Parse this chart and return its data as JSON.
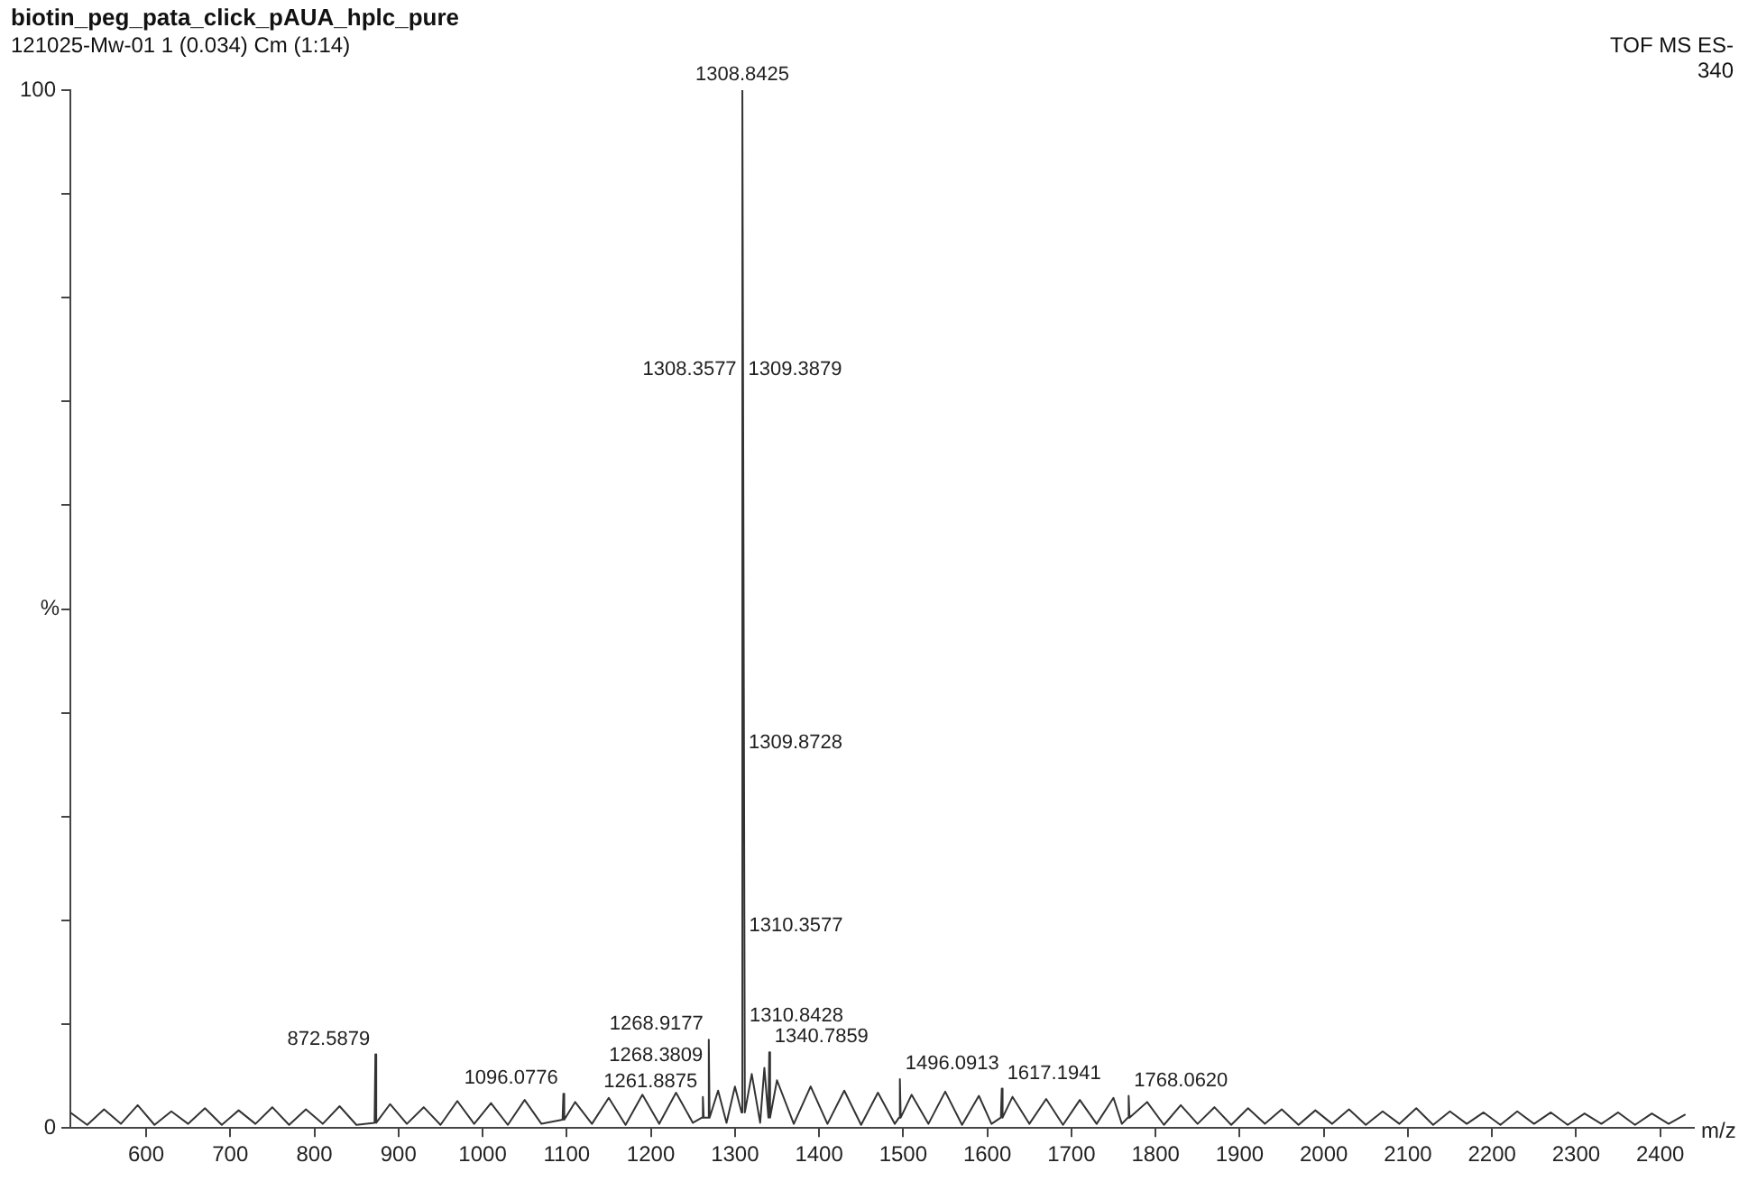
{
  "chart_data": {
    "type": "line",
    "title": "biotin_peg_pata_click_pAUA_hplc_pure",
    "subtitle": "121025-Mw-01 1 (0.034) Cm (1:14)",
    "xlabel": "m/z",
    "ylabel": "%",
    "x": [
      510,
      530,
      550,
      570,
      590,
      610,
      630,
      650,
      670,
      690,
      710,
      730,
      750,
      770,
      790,
      810,
      830,
      850,
      871.6,
      872.5879,
      873.6,
      890,
      910,
      930,
      950,
      970,
      990,
      1010,
      1030,
      1050,
      1070,
      1095.1,
      1096.0776,
      1097.1,
      1110,
      1130,
      1150,
      1170,
      1190,
      1210,
      1230,
      1250,
      1260.9,
      1261.8875,
      1262.9,
      1267.9,
      1268.9177,
      1269.9,
      1280,
      1290,
      1300,
      1307.9,
      1308.8425,
      1311.8,
      1320,
      1330,
      1335,
      1339.8,
      1340.7859,
      1341.8,
      1350,
      1370,
      1390,
      1410,
      1430,
      1450,
      1470,
      1490,
      1495.1,
      1496.0913,
      1497.1,
      1510,
      1530,
      1550,
      1570,
      1590,
      1605,
      1616.2,
      1617.1941,
      1618.2,
      1630,
      1650,
      1670,
      1690,
      1710,
      1730,
      1750,
      1760,
      1767.1,
      1768.062,
      1769.1,
      1790,
      1810,
      1830,
      1850,
      1870,
      1890,
      1910,
      1930,
      1950,
      1970,
      1990,
      2010,
      2030,
      2050,
      2070,
      2090,
      2110,
      2130,
      2150,
      2170,
      2190,
      2210,
      2230,
      2250,
      2270,
      2290,
      2310,
      2330,
      2350,
      2370,
      2390,
      2410,
      2430
    ],
    "series": [
      {
        "color": "#333333",
        "values": [
          1.5,
          0.3,
          1.8,
          0.4,
          2.2,
          0.3,
          1.6,
          0.4,
          1.9,
          0.3,
          1.7,
          0.4,
          2.0,
          0.3,
          1.8,
          0.4,
          2.1,
          0.3,
          0.5,
          7.1,
          0.5,
          2.3,
          0.4,
          2.0,
          0.3,
          2.6,
          0.4,
          2.4,
          0.3,
          2.7,
          0.4,
          0.8,
          3.3,
          0.8,
          2.5,
          0.4,
          2.9,
          0.3,
          3.2,
          0.4,
          3.4,
          0.5,
          1.0,
          3.0,
          1.0,
          1.0,
          8.5,
          1.0,
          3.6,
          0.5,
          4.0,
          1.5,
          100,
          1.5,
          5.2,
          0.5,
          5.8,
          1.0,
          7.3,
          1.0,
          4.6,
          0.4,
          4.0,
          0.4,
          3.6,
          0.3,
          3.4,
          0.4,
          1.0,
          4.7,
          1.0,
          3.2,
          0.4,
          3.5,
          0.3,
          3.1,
          0.4,
          1.0,
          3.8,
          1.0,
          3.0,
          0.4,
          2.8,
          0.3,
          2.7,
          0.4,
          2.9,
          0.4,
          1.0,
          3.1,
          1.0,
          2.5,
          0.3,
          2.2,
          0.4,
          2.0,
          0.3,
          1.9,
          0.4,
          1.8,
          0.3,
          1.7,
          0.4,
          1.8,
          0.3,
          1.6,
          0.4,
          1.9,
          0.3,
          1.6,
          0.4,
          1.5,
          0.3,
          1.6,
          0.4,
          1.5,
          0.3,
          1.4,
          0.4,
          1.5,
          0.3,
          1.4,
          0.4,
          1.3
        ]
      }
    ],
    "xlim": [
      510,
      2440
    ],
    "xticks": [
      600,
      700,
      800,
      900,
      1000,
      1100,
      1200,
      1300,
      1400,
      1500,
      1600,
      1700,
      1800,
      1900,
      2000,
      2100,
      2200,
      2300,
      2400
    ],
    "ylim": [
      0,
      100
    ],
    "yticks": [
      0,
      {
        "value": 10,
        "label": null
      },
      {
        "value": 20,
        "label": null
      },
      {
        "value": 30,
        "label": null
      },
      {
        "value": 40,
        "label": null
      },
      {
        "value": 50,
        "label": null
      },
      {
        "value": 60,
        "label": null
      },
      {
        "value": 70,
        "label": null
      },
      {
        "value": 80,
        "label": null
      },
      {
        "value": 90,
        "label": null
      },
      100
    ],
    "grid": false,
    "legend": false,
    "marker": "none",
    "line_style": "solid",
    "annotations": [
      "TOF MS ES-",
      "340",
      {
        "text": "1308.8425",
        "x": 1308.8425,
        "y": 100
      },
      {
        "text": "1308.3577",
        "x": 1308.3577,
        "y": 71.6
      },
      {
        "text": "1309.3879",
        "x": 1309.3879,
        "y": 71.6
      },
      {
        "text": "1309.8728",
        "x": 1309.8728,
        "y": 35.6
      },
      {
        "text": "1310.3577",
        "x": 1310.3577,
        "y": 18
      },
      {
        "text": "1310.8428",
        "x": 1310.8428,
        "y": 9.3
      },
      {
        "text": "1268.9177",
        "x": 1268.9177,
        "y": 8.5
      },
      {
        "text": "1268.3809",
        "x": 1268.3809,
        "y": 5.5
      },
      {
        "text": "1261.8875",
        "x": 1261.8875,
        "y": 3.0
      },
      {
        "text": "1340.7859",
        "x": 1340.7859,
        "y": 7.3
      },
      {
        "text": "872.5879",
        "x": 872.5879,
        "y": 7.1
      },
      {
        "text": "1096.0776",
        "x": 1096.0776,
        "y": 3.3
      },
      {
        "text": "1496.0913",
        "x": 1496.0913,
        "y": 4.7
      },
      {
        "text": "1617.1941",
        "x": 1617.1941,
        "y": 3.8
      },
      {
        "text": "1768.0620",
        "x": 1768.062,
        "y": 3.1
      }
    ]
  }
}
